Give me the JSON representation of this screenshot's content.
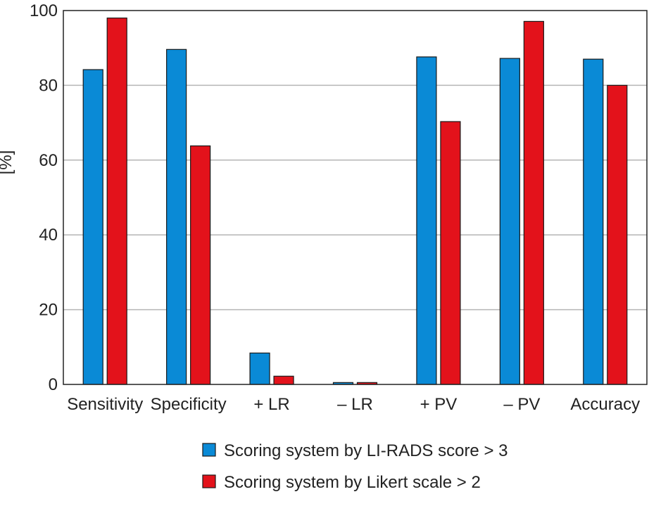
{
  "chart_data": {
    "type": "bar",
    "categories": [
      "Sensitivity",
      "Specificity",
      "+ LR",
      "– LR",
      "+ PV",
      "– PV",
      "Accuracy"
    ],
    "series": [
      {
        "name": "Scoring system by LI-RADS score > 3",
        "color": "#0a8ad6",
        "values": [
          84.2,
          89.6,
          8.4,
          0.5,
          87.6,
          87.2,
          87.0
        ]
      },
      {
        "name": "Scoring system by Likert scale > 2",
        "color": "#e3121b",
        "values": [
          98.0,
          63.8,
          2.2,
          0.5,
          70.3,
          97.1,
          80.0
        ]
      }
    ],
    "ylabel": "[%]",
    "ylim": [
      0,
      100
    ],
    "yticks": [
      0,
      20,
      40,
      60,
      80,
      100
    ],
    "grid": true,
    "legend_position": "bottom"
  }
}
